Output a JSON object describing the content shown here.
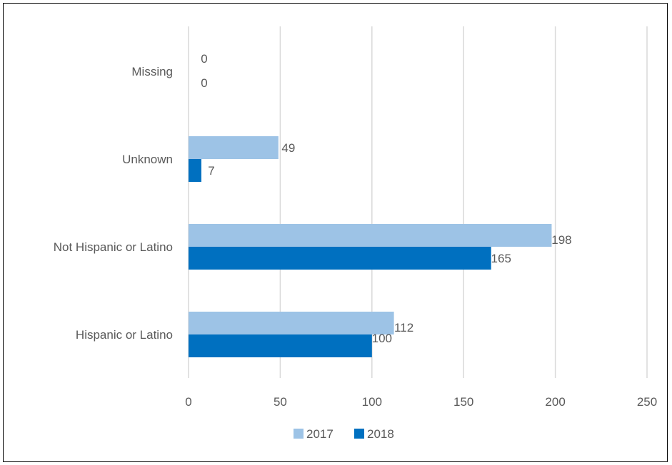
{
  "chart_data": {
    "type": "bar",
    "orientation": "horizontal",
    "title": "",
    "xlabel": "",
    "ylabel": "",
    "categories": [
      "Missing",
      "Unknown",
      "Not Hispanic or Latino",
      "Hispanic or Latino"
    ],
    "series": [
      {
        "name": "2017",
        "color": "#9DC3E6",
        "values": [
          0,
          49,
          198,
          112
        ]
      },
      {
        "name": "2018",
        "color": "#0070C0",
        "values": [
          0,
          7,
          165,
          100
        ]
      }
    ],
    "xlim": [
      0,
      250
    ],
    "xticks": [
      0,
      50,
      100,
      150,
      200,
      250
    ],
    "grid": "vertical",
    "legend": "bottom",
    "data_labels": true
  }
}
